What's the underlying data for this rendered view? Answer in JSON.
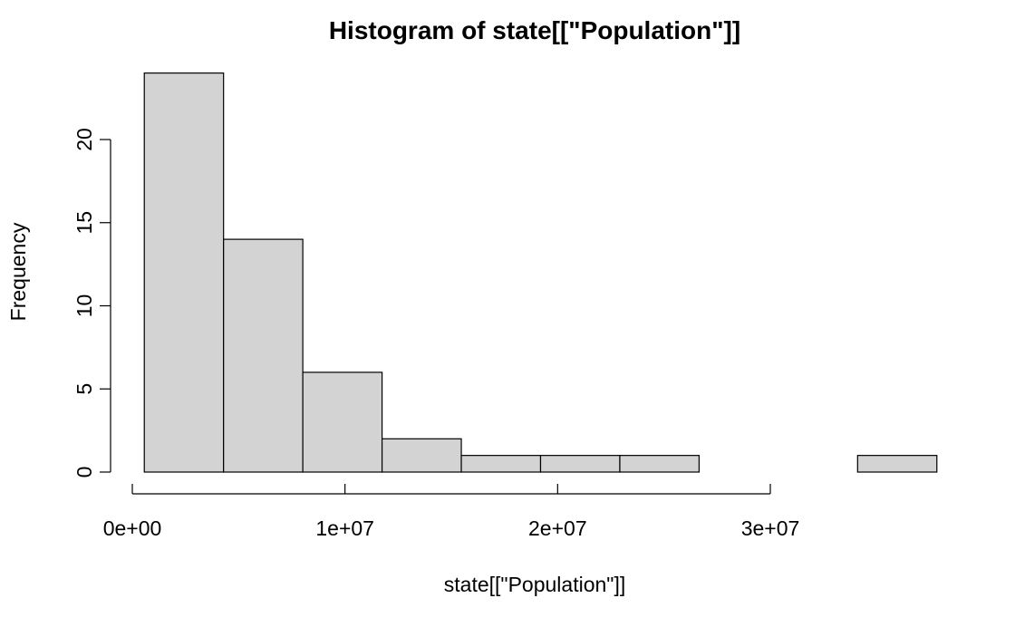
{
  "chart_data": {
    "type": "bar",
    "title": "Histogram of state[[\"Population\"]]",
    "xlabel": "state[[\"Population\"]]",
    "ylabel": "Frequency",
    "bins": [
      {
        "start": 563626,
        "end": 4290389,
        "count": 24
      },
      {
        "start": 4290389,
        "end": 8017152,
        "count": 14
      },
      {
        "start": 8017152,
        "end": 11743915,
        "count": 6
      },
      {
        "start": 11743915,
        "end": 15470678,
        "count": 2
      },
      {
        "start": 15470678,
        "end": 19197441,
        "count": 1
      },
      {
        "start": 19197441,
        "end": 22924204,
        "count": 1
      },
      {
        "start": 22924204,
        "end": 26650967,
        "count": 1
      },
      {
        "start": 26650967,
        "end": 30377730,
        "count": 0
      },
      {
        "start": 30377730,
        "end": 34104493,
        "count": 0
      },
      {
        "start": 34104493,
        "end": 37831256,
        "count": 1
      }
    ],
    "xlim": [
      0,
      37831256
    ],
    "ylim": [
      0,
      24
    ],
    "x_ticks": [
      {
        "value": 0,
        "label": "0e+00"
      },
      {
        "value": 10000000,
        "label": "1e+07"
      },
      {
        "value": 20000000,
        "label": "2e+07"
      },
      {
        "value": 30000000,
        "label": "3e+07"
      }
    ],
    "y_ticks": [
      {
        "value": 0,
        "label": "0"
      },
      {
        "value": 5,
        "label": "5"
      },
      {
        "value": 10,
        "label": "10"
      },
      {
        "value": 15,
        "label": "15"
      },
      {
        "value": 20,
        "label": "20"
      }
    ],
    "bar_color": "#d3d3d3",
    "edge_color": "#000000",
    "grid": false,
    "legend": "none"
  }
}
